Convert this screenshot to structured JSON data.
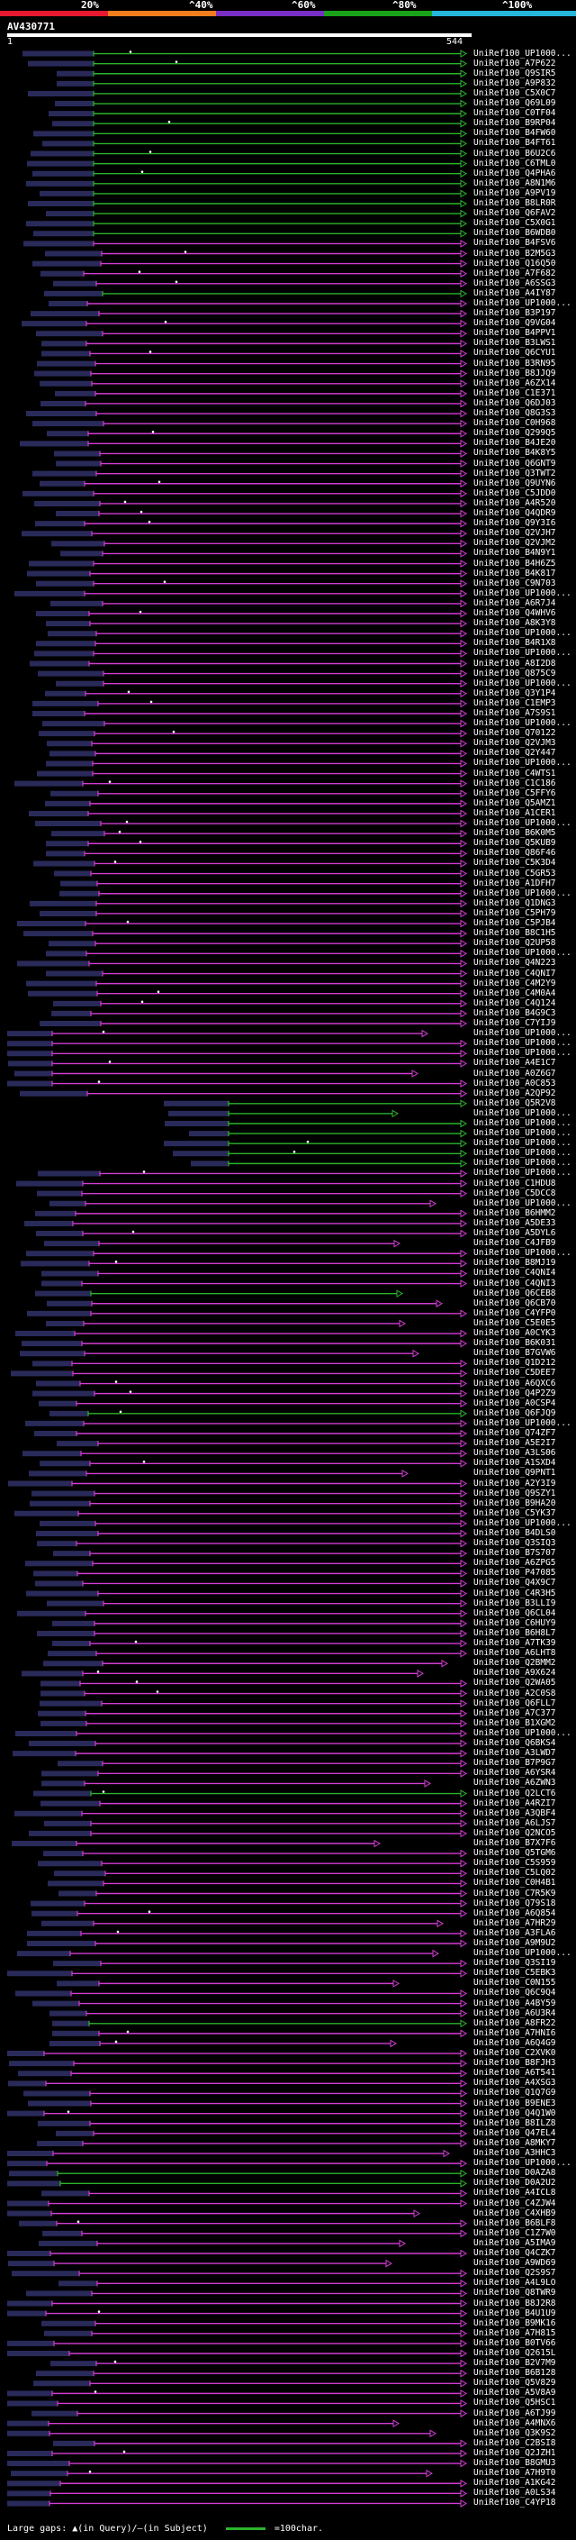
{
  "scale": {
    "ticks": [
      "20%",
      "^40%",
      "^60%",
      "^80%",
      "^100%"
    ],
    "colors": [
      "#e6192e",
      "#f07d1e",
      "#7a2fc4",
      "#1aa31a",
      "#27b5d9"
    ]
  },
  "query": {
    "id": "AV430771",
    "start": "1",
    "end": "544"
  },
  "colors": {
    "hit": "#d23cd2",
    "green_hit": "#2db32d",
    "query_bar": "#ffffff",
    "background": "#000000"
  },
  "hits": [
    "UniRef100_UP1000...",
    "UniRef100_A7P622",
    "UniRef100_Q9SIR5",
    "UniRef100_A9P832",
    "UniRef100_C5X0C7",
    "UniRef100_Q69L09",
    "UniRef100_C0TF04",
    "UniRef100_B9RP04",
    "UniRef100_B4FW60",
    "UniRef100_B4FT61",
    "UniRef100_B6U2C6",
    "UniRef100_C6TML0",
    "UniRef100_Q4PHA6",
    "UniRef100_A8N1M6",
    "UniRef100_A9PV19",
    "UniRef100_B8LR0R",
    "UniRef100_Q6FAV2",
    "UniRef100_C5X0G1",
    "UniRef100_B6WDB0",
    "UniRef100_B4FSV6",
    "UniRef100_B2M5G3",
    "UniRef100_Q16Q50",
    "UniRef100_A7F682",
    "UniRef100_A6SSG3",
    "UniRef100_A4IY87",
    "UniRef100_UP1000...",
    "UniRef100_B3P197",
    "UniRef100_Q9VG04",
    "UniRef100_B4PPV1",
    "UniRef100_B3LWS1",
    "UniRef100_Q6CYU1",
    "UniRef100_B3RN95",
    "UniRef100_B8JJQ9",
    "UniRef100_A6ZX14",
    "UniRef100_C1E371",
    "UniRef100_Q6DJ03",
    "UniRef100_Q8G3S3",
    "UniRef100_C0H968",
    "UniRef100_Q299Q5",
    "UniRef100_B4JE20",
    "UniRef100_B4K8Y5",
    "UniRef100_Q6GNT9",
    "UniRef100_Q3TWT2",
    "UniRef100_Q9UYN6",
    "UniRef100_C5JDD0",
    "UniRef100_A4R520",
    "UniRef100_Q4QDR9",
    "UniRef100_Q9Y3I6",
    "UniRef100_Q2VJH7",
    "UniRef100_Q2VJM2",
    "UniRef100_B4N9Y1",
    "UniRef100_B4H6Z5",
    "UniRef100_B4K817",
    "UniRef100_C9N703",
    "UniRef100_UP1000...",
    "UniRef100_A6R7J4",
    "UniRef100_Q4WHV6",
    "UniRef100_A8K3Y8",
    "UniRef100_UP1000...",
    "UniRef100_B4R1X8",
    "UniRef100_UP1000...",
    "UniRef100_A8I2D8",
    "UniRef100_Q875C9",
    "UniRef100_UP1000...",
    "UniRef100_Q3Y1P4",
    "UniRef100_C1EMP3",
    "UniRef100_A7S9S1",
    "UniRef100_UP1000...",
    "UniRef100_Q70122",
    "UniRef100_Q2VJM3",
    "UniRef100_Q2Y447",
    "UniRef100_UP1000...",
    "UniRef100_C4WTS1",
    "UniRef100_C1C186",
    "UniRef100_C5FFY6",
    "UniRef100_Q5AMZ1",
    "UniRef100_A1CER1",
    "UniRef100_UP1000...",
    "UniRef100_B6K0M5",
    "UniRef100_Q5KUB9",
    "UniRef100_Q86F46",
    "UniRef100_C5K3D4",
    "UniRef100_C5GR53",
    "UniRef100_A1DFH7",
    "UniRef100_UP1000...",
    "UniRef100_Q1DNG3",
    "UniRef100_C5PH79",
    "UniRef100_C5PJB4",
    "UniRef100_B8C1H5",
    "UniRef100_Q2UP58",
    "UniRef100_UP1000...",
    "UniRef100_Q4N223",
    "UniRef100_C4QNI7",
    "UniRef100_C4M2Y9",
    "UniRef100_C4M0A4",
    "UniRef100_C4Q124",
    "UniRef100_B4G9C3",
    "UniRef100_C7YIJ9",
    "UniRef100_UP1000...",
    "UniRef100_UP1000...",
    "UniRef100_UP1000...",
    "UniRef100_A4E1C7",
    "UniRef100_A0Z6G7",
    "UniRef100_A0C853",
    "UniRef100_A2QP92",
    "UniRef100_Q5R2V8",
    "UniRef100_UP1000...",
    "UniRef100_UP1000...",
    "UniRef100_UP1000...",
    "UniRef100_UP1000...",
    "UniRef100_UP1000...",
    "UniRef100_UP1000...",
    "UniRef100_UP1000...",
    "UniRef100_C1HDU8",
    "UniRef100_C5DCC8",
    "UniRef100_UP1000...",
    "UniRef100_B6HMM2",
    "UniRef100_A5DE33",
    "UniRef100_A5DYL6",
    "UniRef100_C4JFB9",
    "UniRef100_UP1000...",
    "UniRef100_B8MJ19",
    "UniRef100_C4QNI4",
    "UniRef100_C4QNI3",
    "UniRef100_Q6CEB8",
    "UniRef100_Q6CB70",
    "UniRef100_C4YFP0",
    "UniRef100_C5E0E5",
    "UniRef100_A0CYK3",
    "UniRef100_B6K031",
    "UniRef100_B7GVW6",
    "UniRef100_Q1D212",
    "UniRef100_C5DEE7",
    "UniRef100_A6QXC6",
    "UniRef100_Q4P2Z9",
    "UniRef100_A0CSP4",
    "UniRef100_Q6FJQ9",
    "UniRef100_UP1000...",
    "UniRef100_Q74ZF7",
    "UniRef100_A5E2I7",
    "UniRef100_A3LS06",
    "UniRef100_A1SXD4",
    "UniRef100_Q9PNT1",
    "UniRef100_A2Y3I9",
    "UniRef100_Q9SZY1",
    "UniRef100_B9HA20",
    "UniRef100_C5YK37",
    "UniRef100_UP1000...",
    "UniRef100_B4DLS0",
    "UniRef100_Q3SIQ3",
    "UniRef100_B7S707",
    "UniRef100_A6ZPG5",
    "UniRef100_P47085",
    "UniRef100_Q4X9C7",
    "UniRef100_C4R3H5",
    "UniRef100_B3LLI9",
    "UniRef100_Q6CL04",
    "UniRef100_C6HUY9",
    "UniRef100_B6H8L7",
    "UniRef100_A7TK39",
    "UniRef100_A6LHT8",
    "UniRef100_Q2BMM2",
    "UniRef100_A9X624",
    "UniRef100_Q2WA05",
    "UniRef100_A2C0S8",
    "UniRef100_Q6FLL7",
    "UniRef100_A7C377",
    "UniRef100_B1XGM2",
    "UniRef100_UP1000...",
    "UniRef100_Q6BKS4",
    "UniRef100_A3LWD7",
    "UniRef100_B7P9G7",
    "UniRef100_A6YSR4",
    "UniRef100_A6ZWN3",
    "UniRef100_Q2LCT6",
    "UniRef100_A4RZI7",
    "UniRef100_A3QBF4",
    "UniRef100_A6LJS7",
    "UniRef100_Q2NCO5",
    "UniRef100_B7X7F6",
    "UniRef100_Q5TGM6",
    "UniRef100_C5S959",
    "UniRef100_C5LQ02",
    "UniRef100_C0H4B1",
    "UniRef100_C7R5K9",
    "UniRef100_Q79S18",
    "UniRef100_A6Q854",
    "UniRef100_A7HR29",
    "UniRef100_A3FLA6",
    "UniRef100_A9M9U2",
    "UniRef100_UP1000...",
    "UniRef100_Q3SI19",
    "UniRef100_C5EBK3",
    "UniRef100_C0N155",
    "UniRef100_Q6C9Q4",
    "UniRef100_A4BY59",
    "UniRef100_A6U3R4",
    "UniRef100_A8FR22",
    "UniRef100_A7HNI6",
    "UniRef100_A6Q4G9",
    "UniRef100_C2XVK0",
    "UniRef100_B8FJH3",
    "UniRef100_A6T541",
    "UniRef100_A4XSG3",
    "UniRef100_Q1Q7G9",
    "UniRef100_B9ENE3",
    "UniRef100_Q4Q1W0",
    "UniRef100_B8ILZ8",
    "UniRef100_Q47EL4",
    "UniRef100_A8MKY7",
    "UniRef100_A3HHC3",
    "UniRef100_UP1000...",
    "UniRef100_D0AZA8",
    "UniRef100_D0A2U2",
    "UniRef100_A4ICL8",
    "UniRef100_C4ZJW4",
    "UniRef100_C4XHB9",
    "UniRef100_B6BLF8",
    "UniRef100_C1Z7W0",
    "UniRef100_A5IMA9",
    "UniRef100_Q4CZK7",
    "UniRef100_A9WD69",
    "UniRef100_Q2S9S7",
    "UniRef100_A4L9LO",
    "UniRef100_Q8TWR9",
    "UniRef100_B8J2R8",
    "UniRef100_B4U1U9",
    "UniRef100_B9MK16",
    "UniRef100_A7H815",
    "UniRef100_B0TV66",
    "UniRef100_Q2615L",
    "UniRef100_B2V7M9",
    "UniRef100_B6B128",
    "UniRef100_Q5V829",
    "UniRef100_A5V8A9",
    "UniRef100_Q5HSC1",
    "UniRef100_A6TJ99",
    "UniRef100_A4MNX6",
    "UniRef100_Q3K9S2",
    "UniRef100_C2BSI8",
    "UniRef100_Q2JZH1",
    "UniRef100_B8GMU3",
    "UniRef100_A7H9T0",
    "UniRef100_A1KG42",
    "UniRef100_A0LS34",
    "UniRef100_C4YP18"
  ],
  "legend": {
    "gaps_text": "Large gaps: ▲(in Query)/—(in Subject)",
    "char_text": "=100char."
  }
}
